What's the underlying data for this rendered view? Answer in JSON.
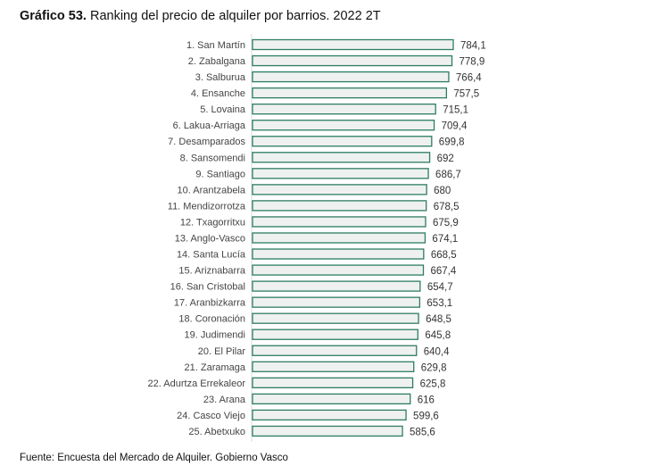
{
  "title_bold": "Gráfico 53.",
  "title_rest": " Ranking del precio de alquiler por barrios. 2022 2T",
  "source": "Fuente: Encuesta del Mercado de Alquiler. Gobierno Vasco",
  "chart_data": {
    "type": "bar",
    "orientation": "horizontal",
    "title": "Gráfico 53. Ranking del precio de alquiler por barrios. 2022 2T",
    "categories": [
      "1. San Martín",
      "2. Zabalgana",
      "3. Salburua",
      "4. Ensanche",
      "5. Lovaina",
      "6. Lakua-Arriaga",
      "7. Desamparados",
      "8. Sansomendi",
      "9. Santiago",
      "10. Arantzabela",
      "11. Mendizorrotza",
      "12. Txagorritxu",
      "13. Anglo-Vasco",
      "14. Santa Lucía",
      "15. Ariznabarra",
      "16. San Cristobal",
      "17. Aranbizkarra",
      "18. Coronación",
      "19. Judimendi",
      "20. El Pilar",
      "21. Zaramaga",
      "22. Adurtza Errekaleor",
      "23. Arana",
      "24. Casco Viejo",
      "25. Abetxuko"
    ],
    "values": [
      784.1,
      778.9,
      766.4,
      757.5,
      715.1,
      709.4,
      699.8,
      692,
      686.7,
      680,
      678.5,
      675.9,
      674.1,
      668.5,
      667.4,
      654.7,
      653.1,
      648.5,
      645.8,
      640.4,
      629.8,
      625.8,
      616,
      599.6,
      585.6
    ],
    "value_labels": [
      "784,1",
      "778,9",
      "766,4",
      "757,5",
      "715,1",
      "709,4",
      "699,8",
      "692",
      "686,7",
      "680",
      "678,5",
      "675,9",
      "674,1",
      "668,5",
      "667,4",
      "654,7",
      "653,1",
      "648,5",
      "645,8",
      "640,4",
      "629,8",
      "625,8",
      "616",
      "599,6",
      "585,6"
    ],
    "xlim": [
      0,
      784.1
    ],
    "grid": false,
    "colors": {
      "bar_fill": "#eef1f0",
      "bar_stroke": "#2e7d62",
      "axis": "#d8dcd9"
    }
  }
}
